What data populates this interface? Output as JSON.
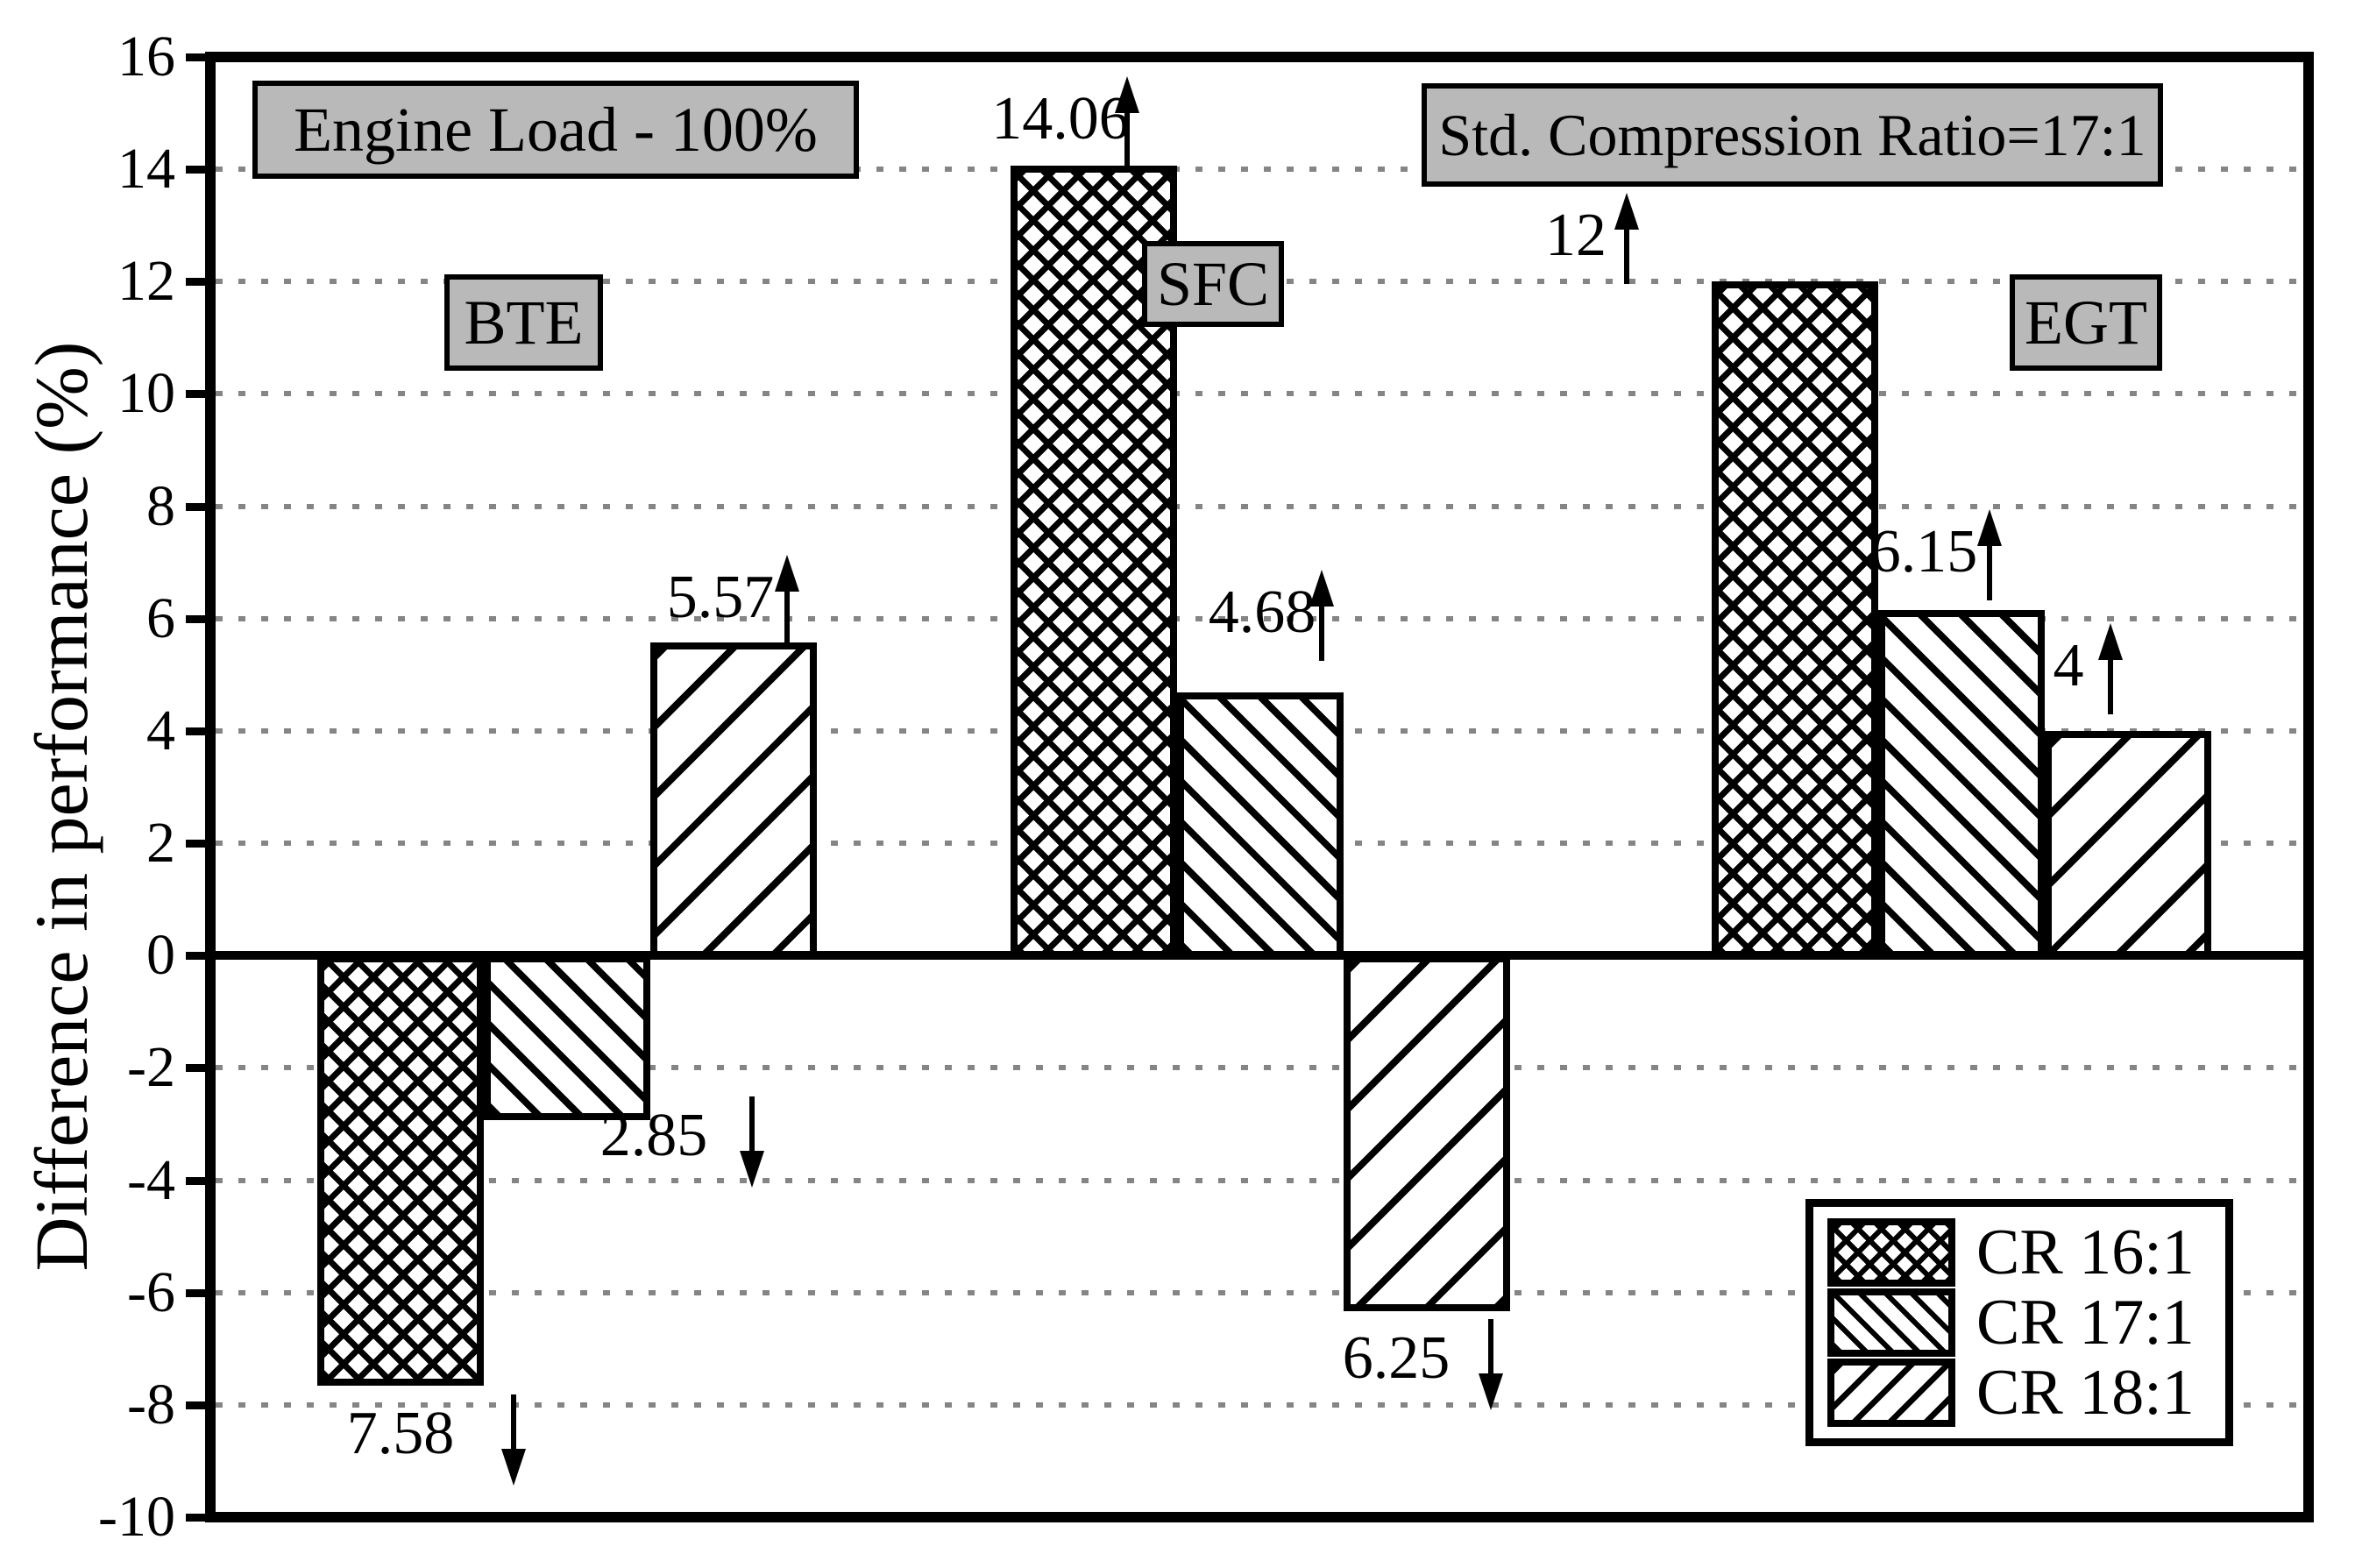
{
  "chart_data": {
    "type": "bar",
    "title": "",
    "categories": [
      "BTE",
      "SFC",
      "EGT"
    ],
    "series": [
      {
        "name": "CR 16:1",
        "values": [
          -7.58,
          14.06,
          12
        ],
        "labels": [
          "7.58",
          "14.06",
          "12"
        ]
      },
      {
        "name": "CR 17:1",
        "values": [
          -2.85,
          4.68,
          6.15
        ],
        "labels": [
          "2.85",
          "4.68",
          "6.15"
        ]
      },
      {
        "name": "CR 18:1",
        "values": [
          5.57,
          -6.25,
          4
        ],
        "labels": [
          "5.57",
          "6.25",
          "4"
        ]
      }
    ],
    "xlabel": "",
    "ylabel": "Difference in performance (%)",
    "ylim": [
      -10,
      16
    ],
    "ytick_step": 2,
    "grid": "dotted-horizontal",
    "legend_position": "lower-right",
    "bar_patterns": [
      "crosshatch",
      "backslash-hatch",
      "slash-hatch"
    ],
    "annotation_arrows": "up-for-positive-down-for-negative"
  },
  "info_boxes": {
    "engine_load": "Engine Load - 100%",
    "std_compression": "Std. Compression Ratio=17:1"
  },
  "legend": {
    "items": [
      {
        "label": "CR 16:1",
        "pattern": "crosshatch"
      },
      {
        "label": "CR 17:1",
        "pattern": "backslash-hatch"
      },
      {
        "label": "CR 18:1",
        "pattern": "slash-hatch"
      }
    ]
  },
  "colors": {
    "ink": "#000000",
    "info_box_fill": "#b9b9b9",
    "gridline": "#858585",
    "background": "#ffffff"
  }
}
